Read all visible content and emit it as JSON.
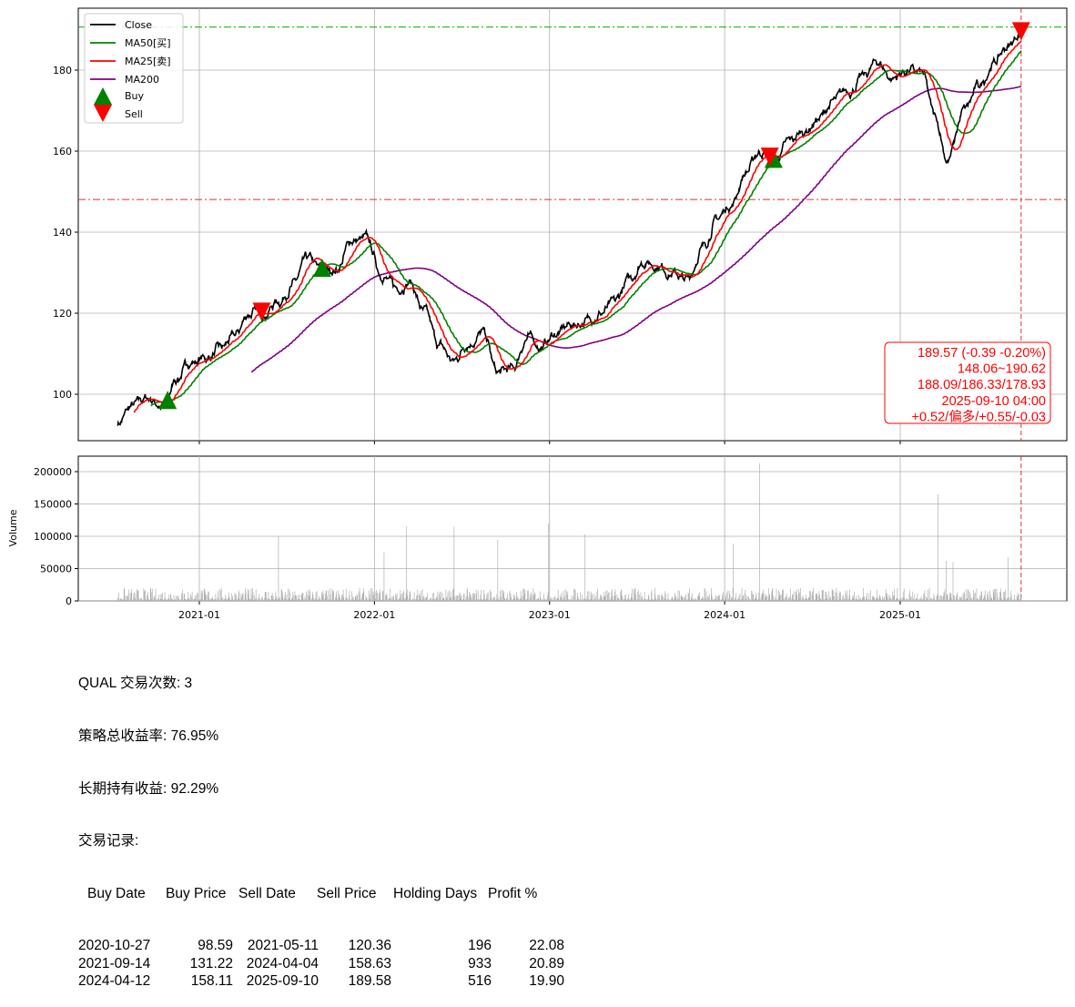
{
  "chart_data": [
    {
      "type": "line",
      "panel": "price",
      "yticks": [
        100,
        120,
        140,
        160,
        180
      ],
      "ylim": [
        88,
        194
      ],
      "xlim": [
        "2020-05-20",
        "2025-11-10"
      ],
      "xticks": [
        "2021-01",
        "2022-01",
        "2023-01",
        "2024-01",
        "2025-01"
      ],
      "grid": true,
      "legend_position": "top-left",
      "monthly_close": [
        [
          "2020-07-15",
          93
        ],
        [
          "2020-08-15",
          97
        ],
        [
          "2020-09-15",
          99
        ],
        [
          "2020-10-20",
          97
        ],
        [
          "2020-11-15",
          104
        ],
        [
          "2020-12-15",
          108
        ],
        [
          "2021-01-15",
          109
        ],
        [
          "2021-02-15",
          111
        ],
        [
          "2021-03-15",
          114
        ],
        [
          "2021-04-15",
          120
        ],
        [
          "2021-05-15",
          120
        ],
        [
          "2021-06-15",
          123
        ],
        [
          "2021-07-15",
          127
        ],
        [
          "2021-08-15",
          133
        ],
        [
          "2021-09-15",
          130
        ],
        [
          "2021-10-15",
          131
        ],
        [
          "2021-11-15",
          138
        ],
        [
          "2021-12-15",
          138
        ],
        [
          "2022-01-15",
          130
        ],
        [
          "2022-02-15",
          126
        ],
        [
          "2022-03-15",
          128
        ],
        [
          "2022-04-15",
          120
        ],
        [
          "2022-05-15",
          112
        ],
        [
          "2022-06-15",
          108
        ],
        [
          "2022-07-15",
          113
        ],
        [
          "2022-08-15",
          115
        ],
        [
          "2022-09-15",
          105
        ],
        [
          "2022-10-15",
          106
        ],
        [
          "2022-11-15",
          114
        ],
        [
          "2022-12-15",
          112
        ],
        [
          "2023-01-15",
          115
        ],
        [
          "2023-02-15",
          117
        ],
        [
          "2023-03-15",
          118
        ],
        [
          "2023-04-15",
          120
        ],
        [
          "2023-05-15",
          122
        ],
        [
          "2023-06-15",
          128
        ],
        [
          "2023-07-15",
          133
        ],
        [
          "2023-08-15",
          132
        ],
        [
          "2023-09-15",
          130
        ],
        [
          "2023-10-15",
          128
        ],
        [
          "2023-11-15",
          136
        ],
        [
          "2023-12-15",
          143
        ],
        [
          "2024-01-15",
          147
        ],
        [
          "2024-02-15",
          155
        ],
        [
          "2024-03-15",
          160
        ],
        [
          "2024-04-15",
          158
        ],
        [
          "2024-05-15",
          162
        ],
        [
          "2024-06-15",
          165
        ],
        [
          "2024-07-15",
          168
        ],
        [
          "2024-08-15",
          172
        ],
        [
          "2024-09-15",
          175
        ],
        [
          "2024-10-15",
          178
        ],
        [
          "2024-11-15",
          182
        ],
        [
          "2024-12-15",
          178
        ],
        [
          "2025-01-15",
          180
        ],
        [
          "2025-02-15",
          179
        ],
        [
          "2025-03-15",
          168
        ],
        [
          "2025-04-10",
          158
        ],
        [
          "2025-05-15",
          170
        ],
        [
          "2025-06-15",
          176
        ],
        [
          "2025-07-15",
          182
        ],
        [
          "2025-08-15",
          186
        ],
        [
          "2025-09-10",
          189.57
        ]
      ],
      "series": [
        {
          "name": "Close",
          "color": "#000000"
        },
        {
          "name": "MA50[买]",
          "color": "#008000",
          "window": 50
        },
        {
          "name": "MA25[卖]",
          "color": "#ff0000",
          "window": 25
        },
        {
          "name": "MA200",
          "color": "#800080",
          "window": 200
        }
      ],
      "buy_markers": {
        "name": "Buy",
        "color": "#008000",
        "points": [
          [
            "2020-10-27",
            98.59
          ],
          [
            "2021-09-14",
            131.22
          ],
          [
            "2024-04-12",
            158.11
          ]
        ]
      },
      "sell_markers": {
        "name": "Sell",
        "color": "#ff0000",
        "points": [
          [
            "2021-05-11",
            120.36
          ],
          [
            "2024-04-04",
            158.63
          ],
          [
            "2025-09-10",
            189.58
          ]
        ]
      },
      "hlines": [
        {
          "value": 190.62,
          "color": "#00aa00"
        },
        {
          "value": 148.06,
          "color": "#dd3333"
        }
      ],
      "vline": {
        "date": "2025-09-10",
        "color": "#dd3333"
      },
      "annotation": [
        "189.57 (-0.39 -0.20%)",
        "148.06~190.62",
        "188.09/186.33/178.93",
        "2025-09-10 04:00",
        "+0.52/偏多/+0.55/-0.03"
      ]
    },
    {
      "type": "bar",
      "panel": "volume",
      "ylabel": "Volume",
      "yticks": [
        0,
        50000,
        100000,
        150000,
        200000
      ],
      "yticklabels": [
        "0",
        "50000",
        "100000",
        "150000",
        "200000"
      ],
      "ylim": [
        0,
        225000
      ],
      "color": "#b0b0b0",
      "typical_range": [
        2000,
        15000
      ],
      "spikes": [
        [
          "2021-06-15",
          100000
        ],
        [
          "2022-03-10",
          115000
        ],
        [
          "2022-06-17",
          115000
        ],
        [
          "2022-09-16",
          95000
        ],
        [
          "2022-12-30",
          120000
        ],
        [
          "2023-03-17",
          103000
        ],
        [
          "2024-01-19",
          88000
        ],
        [
          "2024-03-15",
          213000
        ],
        [
          "2025-03-21",
          165000
        ],
        [
          "2025-04-07",
          62000
        ],
        [
          "2025-08-15",
          67000
        ],
        [
          "2022-01-21",
          75000
        ],
        [
          "2025-04-21",
          60000
        ]
      ]
    }
  ],
  "summary": {
    "line1": "QUAL 交易次数: 3",
    "line2": "策略总收益率: 76.95%",
    "line3": "长期持有收益: 92.29%",
    "line4": "交易记录:",
    "headers": [
      "Buy Date",
      "Buy Price",
      "Sell Date",
      "Sell Price",
      "Holding Days",
      "Profit %"
    ],
    "rows": [
      [
        "2020-10-27",
        "98.59",
        "2021-05-11",
        "120.36",
        "196",
        "22.08"
      ],
      [
        "2021-09-14",
        "131.22",
        "2024-04-04",
        "158.63",
        "933",
        "20.89"
      ],
      [
        "2024-04-12",
        "158.11",
        "2025-09-10",
        "189.58",
        "516",
        "19.90"
      ]
    ]
  }
}
